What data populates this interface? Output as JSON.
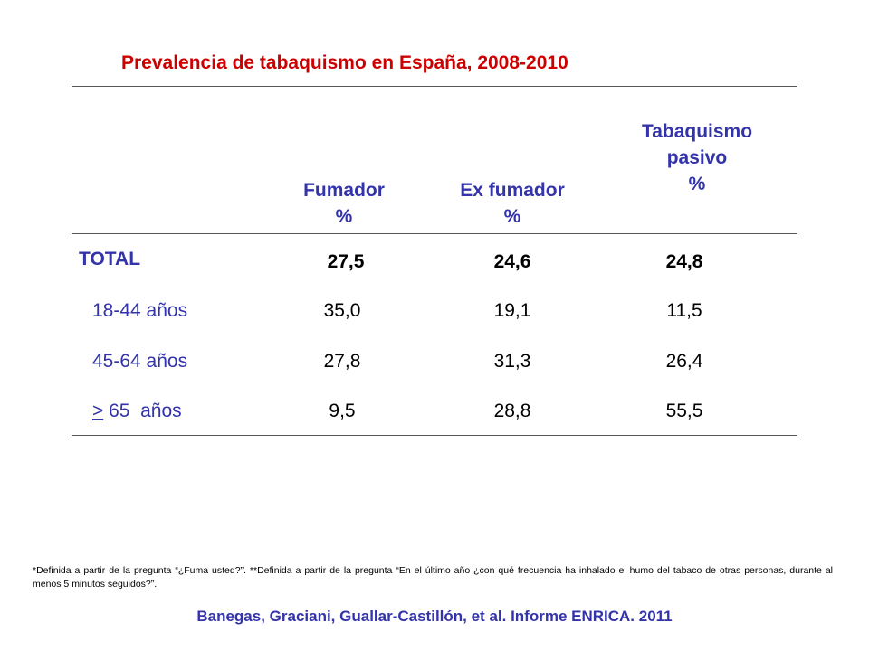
{
  "title": "Prevalencia de tabaquismo en España, 2008-2010",
  "table": {
    "headers": [
      {
        "line1": "Fumador",
        "line2": "%",
        "line3": ""
      },
      {
        "line1": "Ex fumador",
        "line2": "%",
        "line3": ""
      },
      {
        "line1": "Tabaquismo",
        "line2": "pasivo",
        "line3": "%"
      }
    ],
    "rows": [
      {
        "label": "TOTAL",
        "values": [
          "27,5",
          "24,6",
          "24,8"
        ]
      },
      {
        "label": "18-44 años",
        "values": [
          "35,0",
          "19,1",
          "11,5"
        ]
      },
      {
        "label": "45-64 años",
        "values": [
          "27,8",
          "31,3",
          "26,4"
        ]
      },
      {
        "label_symbol": ">",
        "label": " 65  años",
        "values": [
          "9,5",
          "28,8",
          "55,5"
        ]
      }
    ]
  },
  "footnote": "*Definida a partir de la pregunta “¿Fuma usted?”. **Definida a partir de la pregunta “En el último año ¿con qué frecuencia ha inhalado el humo del tabaco de otras personas, durante al menos 5 minutos seguidos?”.",
  "citation": "Banegas, Graciani, Guallar-Castillón, et al. Informe ENRICA. 2011"
}
